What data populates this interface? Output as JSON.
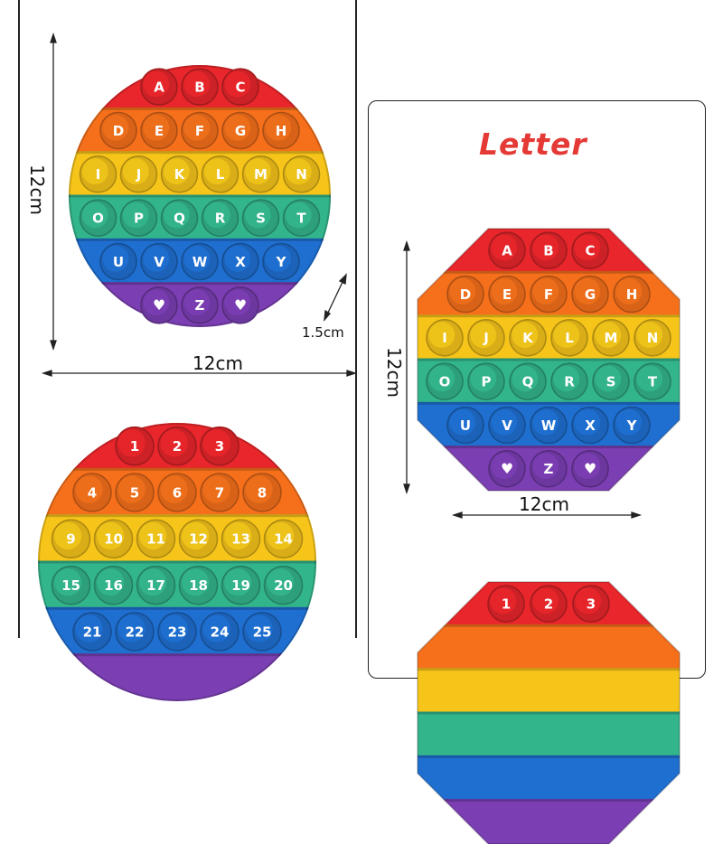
{
  "title": "Letter",
  "dimensions": {
    "round_height": "12cm",
    "round_width": "12cm",
    "bubble_size": "1.5cm",
    "octagon_height": "12cm",
    "octagon_width": "12cm"
  },
  "round_letter_rows": [
    [
      "A",
      "B",
      "C"
    ],
    [
      "D",
      "E",
      "F",
      "G",
      "H"
    ],
    [
      "I",
      "J",
      "K",
      "L",
      "M",
      "N"
    ],
    [
      "O",
      "P",
      "Q",
      "R",
      "S",
      "T"
    ],
    [
      "U",
      "V",
      "W",
      "X",
      "Y"
    ],
    [
      "♥",
      "Z",
      "♥"
    ]
  ],
  "octagon_letter_rows": [
    [
      "A",
      "B",
      "C"
    ],
    [
      "D",
      "E",
      "F",
      "G",
      "H"
    ],
    [
      "I",
      "J",
      "K",
      "L",
      "M",
      "N"
    ],
    [
      "O",
      "P",
      "Q",
      "R",
      "S",
      "T"
    ],
    [
      "U",
      "V",
      "W",
      "X",
      "Y"
    ],
    [
      "♥",
      "Z",
      "♥"
    ]
  ],
  "round_number_rows": [
    [
      "1",
      "2",
      "3"
    ],
    [
      "4",
      "5",
      "6",
      "7",
      "8"
    ],
    [
      "9",
      "10",
      "11",
      "12",
      "13",
      "14"
    ],
    [
      "15",
      "16",
      "17",
      "18",
      "19",
      "20"
    ],
    [
      "21",
      "22",
      "23",
      "24",
      "25"
    ]
  ],
  "octagon_number_rows": [
    [
      "1",
      "2",
      "3"
    ]
  ],
  "colors": {
    "red": "#e8262b",
    "orange": "#f6701b",
    "yellow": "#f7c51a",
    "green": "#33b58c",
    "blue": "#1f6fd1",
    "purple": "#7b3fb3",
    "title": "#e53935"
  }
}
